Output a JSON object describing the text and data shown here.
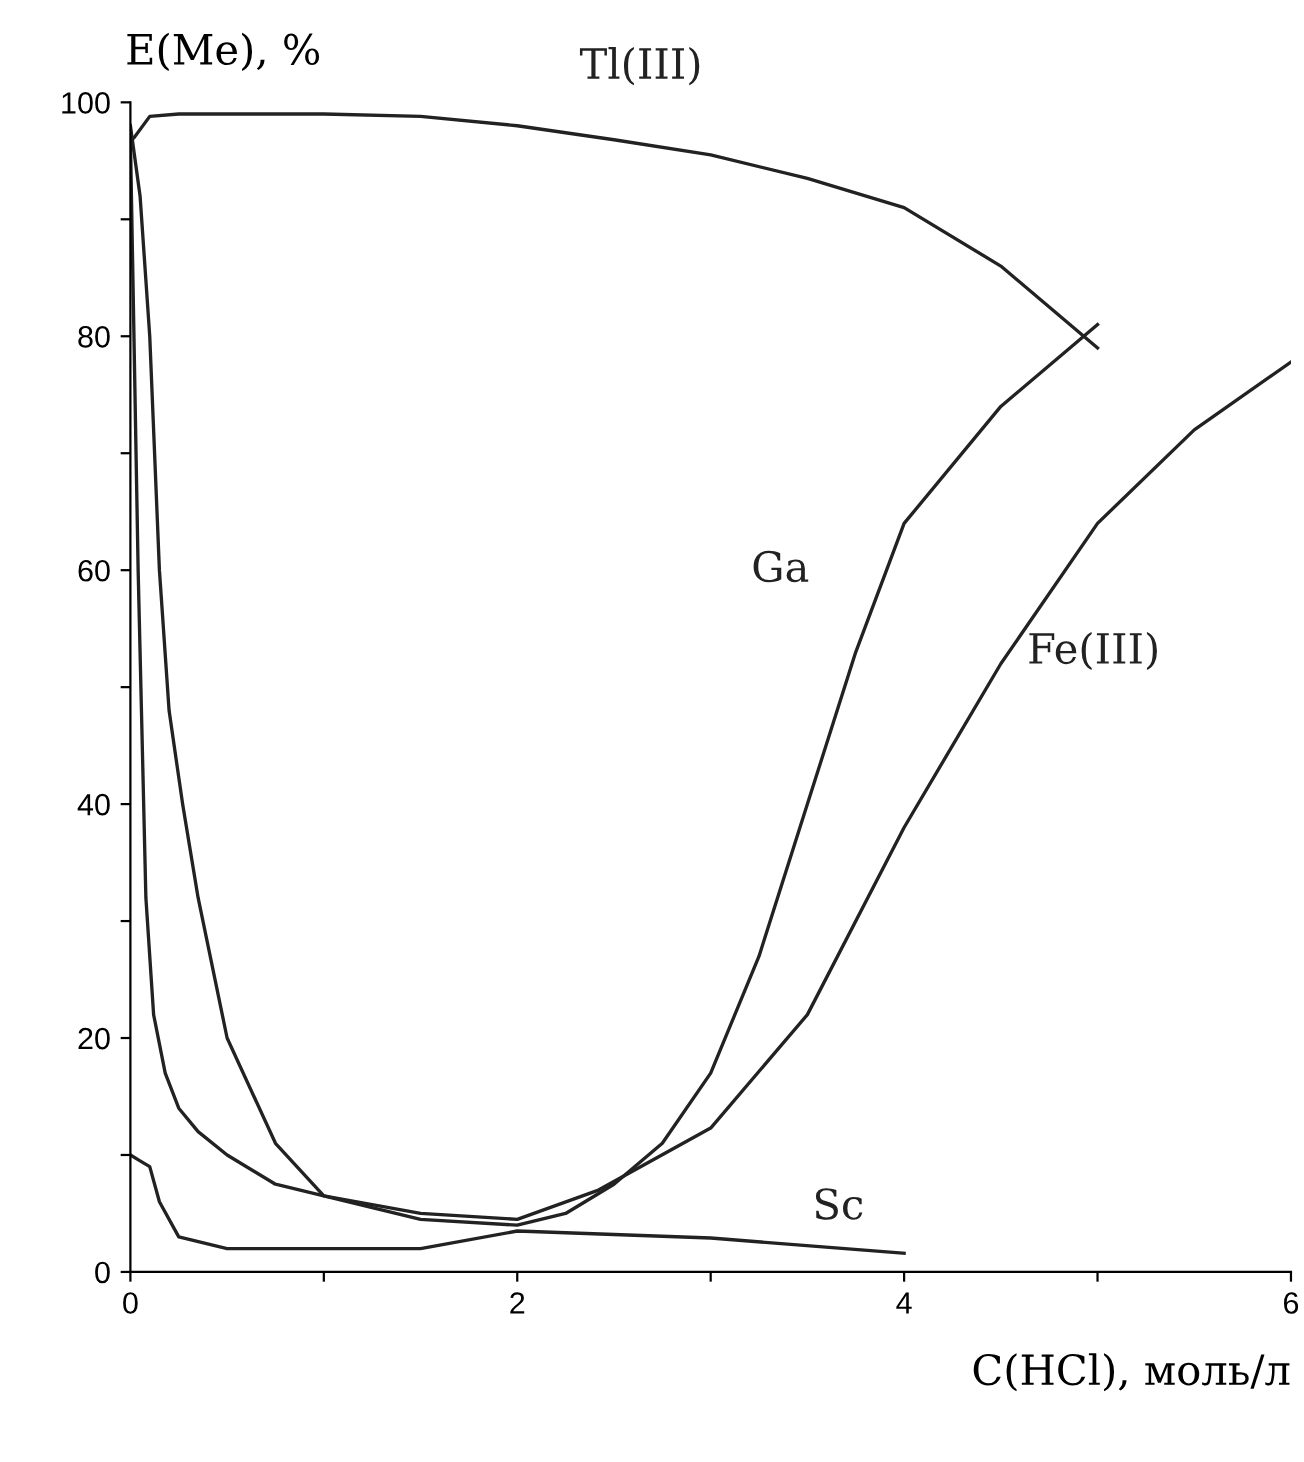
{
  "chart_data": {
    "type": "line",
    "xlabel": "C(HCl), моль/л",
    "ylabel": "E(Me), %",
    "xlim": [
      0,
      6
    ],
    "ylim": [
      0,
      100
    ],
    "xticks": [
      0,
      {
        "value": 1,
        "label": null
      },
      2,
      {
        "value": 3,
        "label": null
      },
      4,
      {
        "value": 5,
        "label": null
      },
      6
    ],
    "yticks": [
      0,
      {
        "value": 10,
        "label": null
      },
      20,
      {
        "value": 30,
        "label": null
      },
      40,
      {
        "value": 50,
        "label": null
      },
      60,
      {
        "value": 70,
        "label": null
      },
      80,
      {
        "value": 90,
        "label": null
      },
      100
    ],
    "grid": false,
    "legend": false,
    "series": [
      {
        "name": "Tl(III)",
        "color": "#222222",
        "x": [
          0.02,
          0.1,
          0.25,
          0.5,
          1,
          1.5,
          2,
          2.5,
          3,
          3.5,
          4,
          4.5,
          5
        ],
        "values": [
          97,
          98.8,
          99,
          99,
          99,
          98.8,
          98,
          96.8,
          95.5,
          93.5,
          91,
          86,
          79
        ]
      },
      {
        "name": "Ga",
        "color": "#222222",
        "x": [
          0,
          0.05,
          0.1,
          0.15,
          0.2,
          0.27,
          0.35,
          0.5,
          0.75,
          1,
          1.5,
          2,
          2.25,
          2.5,
          2.75,
          3,
          3.25,
          3.5,
          3.75,
          4,
          4.5,
          5
        ],
        "values": [
          98,
          92,
          80,
          60,
          48,
          40,
          32,
          20,
          11,
          6.5,
          4.5,
          4,
          5,
          7.5,
          11,
          17,
          27,
          40,
          53,
          64,
          74,
          81
        ]
      },
      {
        "name": "Fe(III)",
        "color": "#222222",
        "x": [
          0,
          0.04,
          0.08,
          0.12,
          0.18,
          0.25,
          0.35,
          0.5,
          0.75,
          1,
          1.5,
          2,
          2.42,
          3,
          3.5,
          4,
          4.5,
          5,
          5.5,
          6
        ],
        "values": [
          97,
          60,
          32,
          22,
          17,
          14,
          12,
          10,
          7.5,
          6.5,
          5,
          4.5,
          7,
          12.3,
          22,
          38,
          52,
          64,
          72,
          77.8
        ]
      },
      {
        "name": "Sc",
        "color": "#222222",
        "x": [
          0,
          0.05,
          0.1,
          0.15,
          0.25,
          0.5,
          1,
          1.5,
          2,
          3,
          4
        ],
        "values": [
          10,
          9.5,
          9,
          6,
          3,
          2,
          2,
          2,
          3.5,
          2.9,
          1.6
        ]
      }
    ]
  }
}
